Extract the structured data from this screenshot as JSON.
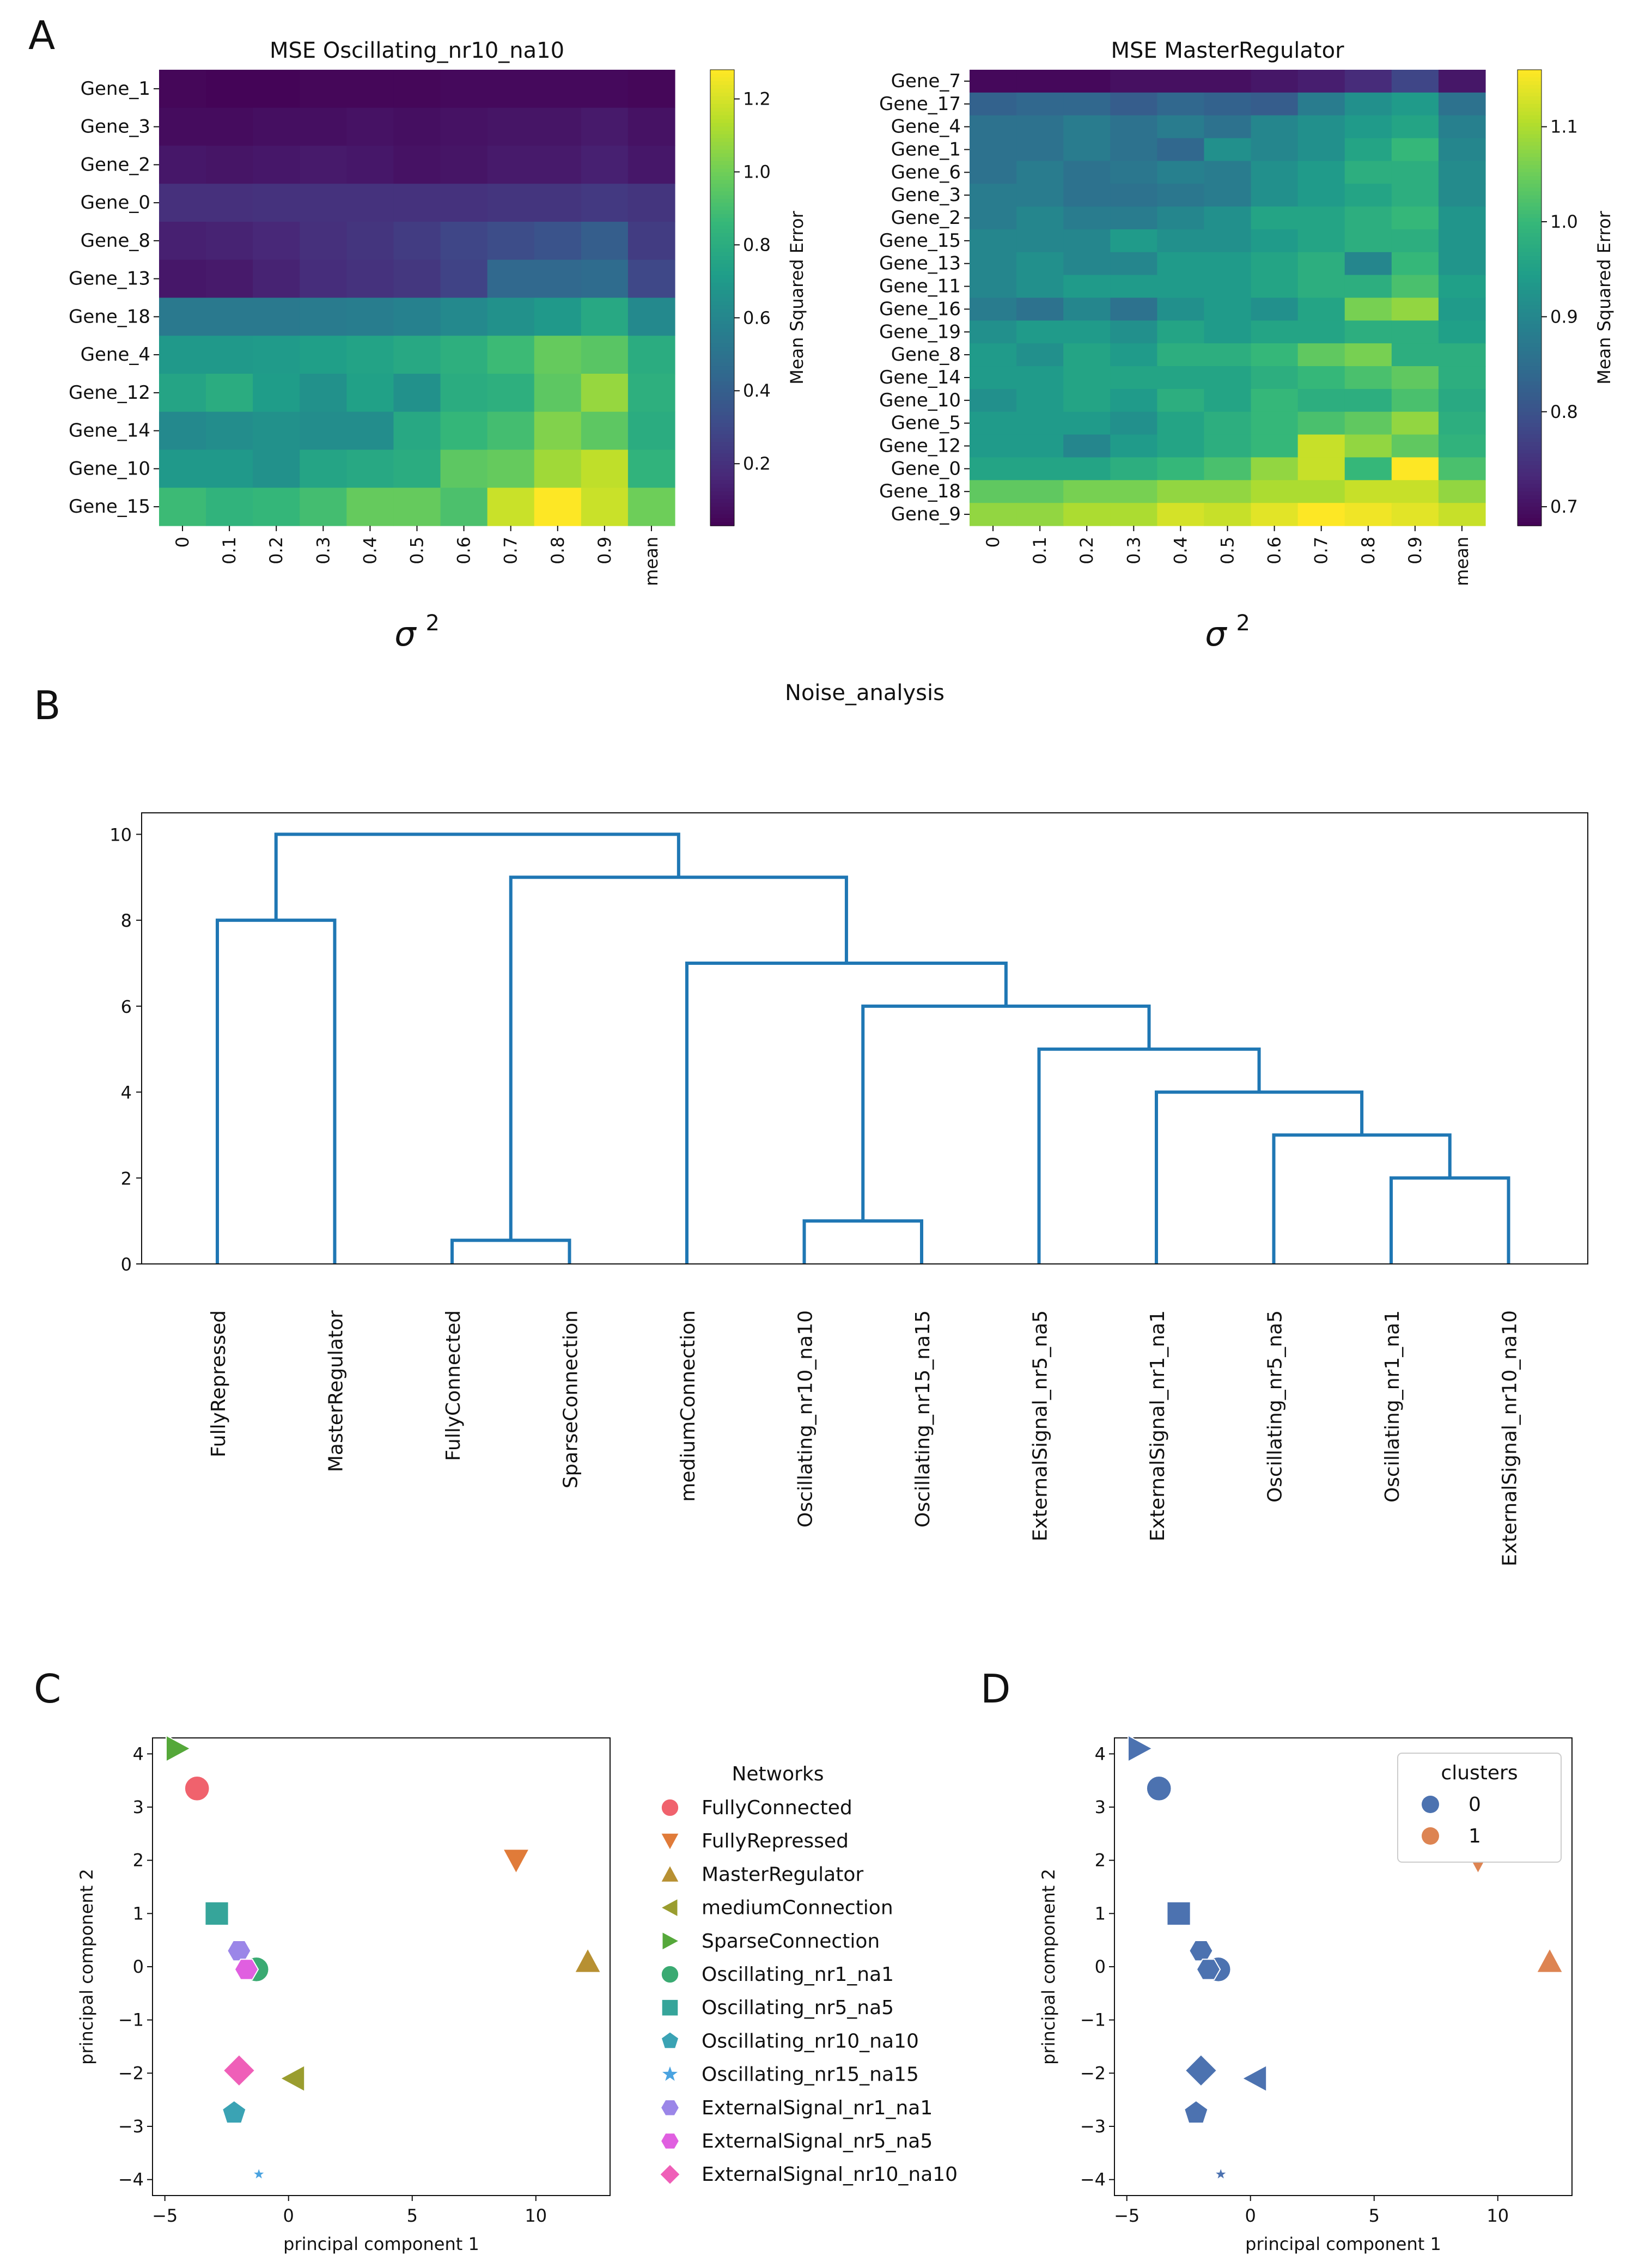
{
  "panels": {
    "A": "A",
    "B": "B",
    "C": "C",
    "D": "D"
  },
  "colors": {
    "dendro": "#1f77b4",
    "cluster0": "#4c72b0",
    "cluster1": "#dd8452",
    "networks": [
      "#f0626d",
      "#e07b39",
      "#b79032",
      "#9a9d2f",
      "#55a83a",
      "#3aaa72",
      "#36a59a",
      "#3aa3b4",
      "#4aa3e0",
      "#9b86e8",
      "#e05fe0",
      "#ef5fb8"
    ]
  },
  "chart_data": [
    {
      "type": "heatmap",
      "title": "MSE Oscillating_nr10_na10",
      "xlabel": "σ",
      "xlabel_sup": "2",
      "colorbar_label": "Mean Squared Error",
      "colorbar_ticks": [
        "0.2",
        "0.4",
        "0.6",
        "0.8",
        "1.0",
        "1.2"
      ],
      "colorbar_tick_values": [
        0.2,
        0.4,
        0.6,
        0.8,
        1.0,
        1.2
      ],
      "vmin": 0.03,
      "vmax": 1.28,
      "columns": [
        "0",
        "0.1",
        "0.2",
        "0.3",
        "0.4",
        "0.5",
        "0.6",
        "0.7",
        "0.8",
        "0.9",
        "mean"
      ],
      "rows": [
        "Gene_1",
        "Gene_3",
        "Gene_2",
        "Gene_0",
        "Gene_8",
        "Gene_13",
        "Gene_18",
        "Gene_4",
        "Gene_12",
        "Gene_14",
        "Gene_10",
        "Gene_15"
      ],
      "values": [
        [
          0.05,
          0.04,
          0.04,
          0.05,
          0.05,
          0.05,
          0.06,
          0.06,
          0.06,
          0.06,
          0.05
        ],
        [
          0.07,
          0.07,
          0.08,
          0.08,
          0.09,
          0.08,
          0.09,
          0.1,
          0.1,
          0.12,
          0.09
        ],
        [
          0.11,
          0.1,
          0.11,
          0.12,
          0.11,
          0.09,
          0.1,
          0.12,
          0.12,
          0.14,
          0.11
        ],
        [
          0.2,
          0.2,
          0.21,
          0.21,
          0.21,
          0.21,
          0.21,
          0.22,
          0.22,
          0.24,
          0.22
        ],
        [
          0.14,
          0.15,
          0.17,
          0.2,
          0.22,
          0.25,
          0.29,
          0.32,
          0.35,
          0.4,
          0.25
        ],
        [
          0.11,
          0.12,
          0.15,
          0.19,
          0.21,
          0.23,
          0.28,
          0.45,
          0.45,
          0.47,
          0.3
        ],
        [
          0.54,
          0.54,
          0.54,
          0.55,
          0.56,
          0.58,
          0.62,
          0.66,
          0.7,
          0.78,
          0.62
        ],
        [
          0.7,
          0.7,
          0.71,
          0.73,
          0.75,
          0.78,
          0.82,
          0.88,
          0.98,
          0.95,
          0.8
        ],
        [
          0.76,
          0.8,
          0.72,
          0.66,
          0.74,
          0.66,
          0.8,
          0.82,
          0.96,
          1.08,
          0.82
        ],
        [
          0.62,
          0.64,
          0.66,
          0.64,
          0.64,
          0.78,
          0.86,
          0.9,
          1.04,
          0.96,
          0.8
        ],
        [
          0.7,
          0.7,
          0.66,
          0.76,
          0.78,
          0.8,
          0.96,
          0.98,
          1.1,
          1.16,
          0.84
        ],
        [
          0.88,
          0.84,
          0.86,
          0.9,
          0.98,
          0.98,
          0.92,
          1.18,
          1.28,
          1.18,
          1.0
        ]
      ]
    },
    {
      "type": "heatmap",
      "title": "MSE MasterRegulator",
      "xlabel": "σ",
      "xlabel_sup": "2",
      "colorbar_label": "Mean Squared Error",
      "colorbar_ticks": [
        "0.7",
        "0.8",
        "0.9",
        "1.0",
        "1.1"
      ],
      "colorbar_tick_values": [
        0.7,
        0.8,
        0.9,
        1.0,
        1.1
      ],
      "vmin": 0.68,
      "vmax": 1.16,
      "columns": [
        "0",
        "0.1",
        "0.2",
        "0.3",
        "0.4",
        "0.5",
        "0.6",
        "0.7",
        "0.8",
        "0.9",
        "mean"
      ],
      "rows": [
        "Gene_7",
        "Gene_17",
        "Gene_4",
        "Gene_1",
        "Gene_6",
        "Gene_3",
        "Gene_2",
        "Gene_15",
        "Gene_13",
        "Gene_11",
        "Gene_16",
        "Gene_19",
        "Gene_8",
        "Gene_14",
        "Gene_10",
        "Gene_5",
        "Gene_12",
        "Gene_0",
        "Gene_18",
        "Gene_9"
      ],
      "values": [
        [
          0.69,
          0.69,
          0.69,
          0.7,
          0.7,
          0.7,
          0.71,
          0.72,
          0.74,
          0.78,
          0.71
        ],
        [
          0.83,
          0.84,
          0.84,
          0.82,
          0.84,
          0.83,
          0.82,
          0.88,
          0.92,
          0.94,
          0.86
        ],
        [
          0.86,
          0.86,
          0.88,
          0.86,
          0.88,
          0.86,
          0.9,
          0.92,
          0.94,
          0.96,
          0.89
        ],
        [
          0.86,
          0.86,
          0.88,
          0.86,
          0.84,
          0.92,
          0.9,
          0.92,
          0.96,
          1.0,
          0.9
        ],
        [
          0.86,
          0.88,
          0.86,
          0.87,
          0.89,
          0.88,
          0.92,
          0.94,
          0.98,
          0.98,
          0.91
        ],
        [
          0.88,
          0.88,
          0.86,
          0.86,
          0.87,
          0.88,
          0.92,
          0.94,
          0.96,
          0.98,
          0.91
        ],
        [
          0.88,
          0.9,
          0.88,
          0.88,
          0.9,
          0.92,
          0.96,
          0.96,
          0.98,
          1.0,
          0.93
        ],
        [
          0.9,
          0.9,
          0.9,
          0.94,
          0.92,
          0.92,
          0.94,
          0.96,
          0.98,
          0.98,
          0.93
        ],
        [
          0.9,
          0.92,
          0.9,
          0.9,
          0.94,
          0.94,
          0.96,
          0.98,
          0.9,
          1.0,
          0.93
        ],
        [
          0.9,
          0.92,
          0.94,
          0.94,
          0.94,
          0.94,
          0.96,
          0.98,
          0.98,
          1.02,
          0.95
        ],
        [
          0.88,
          0.86,
          0.9,
          0.86,
          0.92,
          0.94,
          0.92,
          0.96,
          1.06,
          1.08,
          0.94
        ],
        [
          0.92,
          0.94,
          0.94,
          0.92,
          0.96,
          0.94,
          0.96,
          0.96,
          0.98,
          0.98,
          0.95
        ],
        [
          0.94,
          0.92,
          0.96,
          0.94,
          0.98,
          0.98,
          1.0,
          1.04,
          1.06,
          0.98,
          0.98
        ],
        [
          0.94,
          0.94,
          0.96,
          0.96,
          0.96,
          0.96,
          0.98,
          1.0,
          1.02,
          1.04,
          0.98
        ],
        [
          0.92,
          0.94,
          0.96,
          0.94,
          0.98,
          0.96,
          1.0,
          0.98,
          0.98,
          1.02,
          0.97
        ],
        [
          0.94,
          0.94,
          0.94,
          0.92,
          0.96,
          0.98,
          1.0,
          1.02,
          1.04,
          1.08,
          0.98
        ],
        [
          0.94,
          0.94,
          0.9,
          0.94,
          0.96,
          0.98,
          1.0,
          1.12,
          1.08,
          1.04,
          0.99
        ],
        [
          0.96,
          0.96,
          0.96,
          0.98,
          1.0,
          1.02,
          1.08,
          1.12,
          1.0,
          1.16,
          1.02
        ],
        [
          1.04,
          1.04,
          1.06,
          1.06,
          1.08,
          1.08,
          1.1,
          1.1,
          1.12,
          1.12,
          1.08
        ],
        [
          1.08,
          1.08,
          1.1,
          1.1,
          1.13,
          1.12,
          1.14,
          1.16,
          1.15,
          1.14,
          1.12
        ]
      ]
    },
    {
      "type": "dendrogram",
      "title": "Noise_analysis",
      "ylim": [
        0,
        10.5
      ],
      "yticks": [
        "0",
        "2",
        "4",
        "6",
        "8",
        "10"
      ],
      "ytick_values": [
        0,
        2,
        4,
        6,
        8,
        10
      ],
      "leaves": [
        "FullyRepressed",
        "MasterRegulator",
        "FullyConnected",
        "SparseConnection",
        "mediumConnection",
        "Oscillating_nr10_na10",
        "Oscillating_nr15_na15",
        "ExternalSignal_nr5_na5",
        "ExternalSignal_nr1_na1",
        "Oscillating_nr5_na5",
        "Oscillating_nr1_na1",
        "ExternalSignal_nr10_na10"
      ],
      "merges": [
        {
          "a": 10,
          "b": 11,
          "height": 2
        },
        {
          "a": 9,
          "b": 12,
          "height": 3
        },
        {
          "a": 8,
          "b": 13,
          "height": 4
        },
        {
          "a": 7,
          "b": 14,
          "height": 5
        },
        {
          "a": 5,
          "b": 6,
          "height": 1
        },
        {
          "a": 16,
          "b": 15,
          "height": 6
        },
        {
          "a": 4,
          "b": 17,
          "height": 7
        },
        {
          "a": 2,
          "b": 3,
          "height": 0.55
        },
        {
          "a": 19,
          "b": 18,
          "height": 9
        },
        {
          "a": 0,
          "b": 1,
          "height": 8
        },
        {
          "a": 21,
          "b": 20,
          "height": 10
        }
      ]
    },
    {
      "type": "scatter",
      "xlabel": "principal component 1",
      "ylabel": "principal component 2",
      "xlim": [
        -5.5,
        13
      ],
      "ylim": [
        -4.3,
        4.3
      ],
      "xticks": [
        "−5",
        "0",
        "5",
        "10"
      ],
      "xtick_values": [
        -5,
        0,
        5,
        10
      ],
      "yticks": [
        "4",
        "3",
        "2",
        "1",
        "0",
        "−1",
        "−2",
        "−3",
        "−4"
      ],
      "ytick_values": [
        4,
        3,
        2,
        1,
        0,
        -1,
        -2,
        -3,
        -4
      ],
      "legend_title": "Networks",
      "legend_location": "right",
      "points": [
        {
          "name": "FullyConnected",
          "x": -3.7,
          "y": 3.35,
          "marker": "circle",
          "size": 1.0
        },
        {
          "name": "FullyRepressed",
          "x": 9.2,
          "y": 2.0,
          "marker": "triangle-down",
          "size": 1.0
        },
        {
          "name": "MasterRegulator",
          "x": 12.1,
          "y": 0.1,
          "marker": "triangle-up",
          "size": 1.0
        },
        {
          "name": "mediumConnection",
          "x": 0.2,
          "y": -2.1,
          "marker": "triangle-left",
          "size": 1.0
        },
        {
          "name": "SparseConnection",
          "x": -4.5,
          "y": 4.1,
          "marker": "triangle-right",
          "size": 1.0
        },
        {
          "name": "Oscillating_nr1_na1",
          "x": -1.3,
          "y": -0.05,
          "marker": "circle",
          "size": 1.0
        },
        {
          "name": "Oscillating_nr5_na5",
          "x": -2.9,
          "y": 1.0,
          "marker": "square",
          "size": 1.0
        },
        {
          "name": "Oscillating_nr10_na10",
          "x": -2.2,
          "y": -2.75,
          "marker": "pentagon",
          "size": 0.95
        },
        {
          "name": "Oscillating_nr15_na15",
          "x": -1.2,
          "y": -3.9,
          "marker": "star",
          "size": 0.5
        },
        {
          "name": "ExternalSignal_nr1_na1",
          "x": -2.0,
          "y": 0.3,
          "marker": "hexagon",
          "size": 0.9
        },
        {
          "name": "ExternalSignal_nr5_na5",
          "x": -1.7,
          "y": -0.05,
          "marker": "hexagon",
          "size": 0.9
        },
        {
          "name": "ExternalSignal_nr10_na10",
          "x": -2.0,
          "y": -1.95,
          "marker": "diamond",
          "size": 1.1
        }
      ]
    },
    {
      "type": "scatter",
      "xlabel": "principal component 1",
      "ylabel": "principal component 2",
      "xlim": [
        -5.5,
        13
      ],
      "ylim": [
        -4.3,
        4.3
      ],
      "xticks": [
        "−5",
        "0",
        "5",
        "10"
      ],
      "xtick_values": [
        -5,
        0,
        5,
        10
      ],
      "yticks": [
        "4",
        "3",
        "2",
        "1",
        "0",
        "−1",
        "−2",
        "−3",
        "−4"
      ],
      "ytick_values": [
        4,
        3,
        2,
        1,
        0,
        -1,
        -2,
        -3,
        -4
      ],
      "legend_title": "clusters",
      "legend_location": "upper right",
      "legend_entries": [
        "0",
        "1"
      ],
      "points": [
        {
          "name": "FullyConnected",
          "x": -3.7,
          "y": 3.35,
          "marker": "circle",
          "size": 1.0,
          "cluster": 0
        },
        {
          "name": "FullyRepressed",
          "x": 9.2,
          "y": 2.0,
          "marker": "triangle-down",
          "size": 1.0,
          "cluster": 1
        },
        {
          "name": "MasterRegulator",
          "x": 12.1,
          "y": 0.1,
          "marker": "triangle-up",
          "size": 1.0,
          "cluster": 1
        },
        {
          "name": "mediumConnection",
          "x": 0.2,
          "y": -2.1,
          "marker": "triangle-left",
          "size": 1.0,
          "cluster": 0
        },
        {
          "name": "SparseConnection",
          "x": -4.5,
          "y": 4.1,
          "marker": "triangle-right",
          "size": 1.0,
          "cluster": 0
        },
        {
          "name": "Oscillating_nr1_na1",
          "x": -1.3,
          "y": -0.05,
          "marker": "circle",
          "size": 1.0,
          "cluster": 0
        },
        {
          "name": "Oscillating_nr5_na5",
          "x": -2.9,
          "y": 1.0,
          "marker": "square",
          "size": 1.0,
          "cluster": 0
        },
        {
          "name": "Oscillating_nr10_na10",
          "x": -2.2,
          "y": -2.75,
          "marker": "pentagon",
          "size": 0.95,
          "cluster": 0
        },
        {
          "name": "Oscillating_nr15_na15",
          "x": -1.2,
          "y": -3.9,
          "marker": "star",
          "size": 0.5,
          "cluster": 0
        },
        {
          "name": "ExternalSignal_nr1_na1",
          "x": -2.0,
          "y": 0.3,
          "marker": "hexagon",
          "size": 0.9,
          "cluster": 0
        },
        {
          "name": "ExternalSignal_nr5_na5",
          "x": -1.7,
          "y": -0.05,
          "marker": "hexagon",
          "size": 0.9,
          "cluster": 0
        },
        {
          "name": "ExternalSignal_nr10_na10",
          "x": -2.0,
          "y": -1.95,
          "marker": "diamond",
          "size": 1.1,
          "cluster": 0
        }
      ]
    }
  ]
}
